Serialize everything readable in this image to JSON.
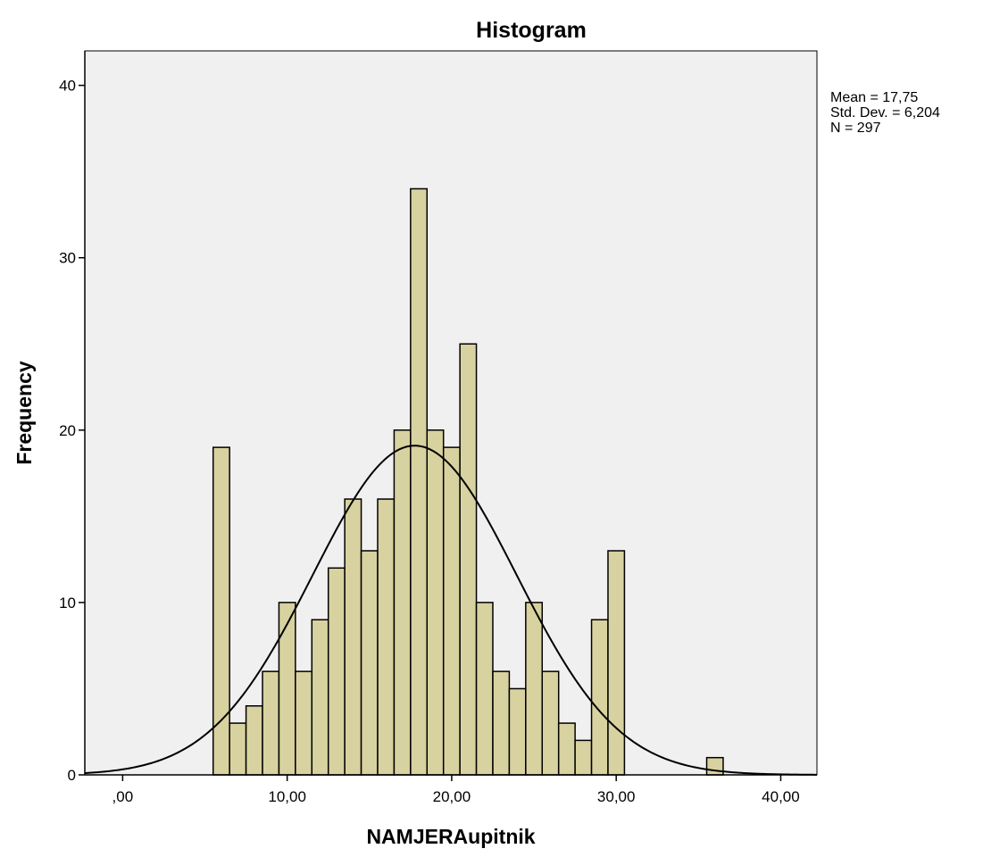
{
  "chart_data": {
    "type": "bar",
    "subtype": "histogram",
    "title": "Histogram",
    "xlabel": "NAMJERAupitnik",
    "ylabel": "Frequency",
    "xlim": [
      -2.3,
      42.2
    ],
    "ylim": [
      0,
      42
    ],
    "x_ticks": [
      {
        "value": 0,
        "label": ",00"
      },
      {
        "value": 10,
        "label": "10,00"
      },
      {
        "value": 20,
        "label": "20,00"
      },
      {
        "value": 30,
        "label": "30,00"
      },
      {
        "value": 40,
        "label": "40,00"
      }
    ],
    "y_ticks": [
      {
        "value": 0,
        "label": "0"
      },
      {
        "value": 10,
        "label": "10"
      },
      {
        "value": 20,
        "label": "20"
      },
      {
        "value": 30,
        "label": "30"
      },
      {
        "value": 40,
        "label": "40"
      }
    ],
    "bins": [
      {
        "x0": 5.5,
        "x1": 6.5,
        "count": 19
      },
      {
        "x0": 6.5,
        "x1": 7.5,
        "count": 3
      },
      {
        "x0": 7.5,
        "x1": 8.5,
        "count": 4
      },
      {
        "x0": 8.5,
        "x1": 9.5,
        "count": 6
      },
      {
        "x0": 9.5,
        "x1": 10.5,
        "count": 10
      },
      {
        "x0": 10.5,
        "x1": 11.5,
        "count": 6
      },
      {
        "x0": 11.5,
        "x1": 12.5,
        "count": 9
      },
      {
        "x0": 12.5,
        "x1": 13.5,
        "count": 12
      },
      {
        "x0": 13.5,
        "x1": 14.5,
        "count": 16
      },
      {
        "x0": 14.5,
        "x1": 15.5,
        "count": 13
      },
      {
        "x0": 15.5,
        "x1": 16.5,
        "count": 16
      },
      {
        "x0": 16.5,
        "x1": 17.5,
        "count": 20
      },
      {
        "x0": 17.5,
        "x1": 18.5,
        "count": 34
      },
      {
        "x0": 18.5,
        "x1": 19.5,
        "count": 20
      },
      {
        "x0": 19.5,
        "x1": 20.5,
        "count": 19
      },
      {
        "x0": 20.5,
        "x1": 21.5,
        "count": 25
      },
      {
        "x0": 21.5,
        "x1": 22.5,
        "count": 10
      },
      {
        "x0": 22.5,
        "x1": 23.5,
        "count": 6
      },
      {
        "x0": 23.5,
        "x1": 24.5,
        "count": 5
      },
      {
        "x0": 24.5,
        "x1": 25.5,
        "count": 10
      },
      {
        "x0": 25.5,
        "x1": 26.5,
        "count": 6
      },
      {
        "x0": 26.5,
        "x1": 27.5,
        "count": 3
      },
      {
        "x0": 27.5,
        "x1": 28.5,
        "count": 2
      },
      {
        "x0": 28.5,
        "x1": 29.5,
        "count": 9
      },
      {
        "x0": 29.5,
        "x1": 30.5,
        "count": 13
      },
      {
        "x0": 35.5,
        "x1": 36.5,
        "count": 1
      }
    ],
    "normal_curve": {
      "mean": 17.75,
      "std_dev": 6.204,
      "n": 297,
      "bin_width": 1
    },
    "stats_labels": [
      "Mean = 17,75",
      "Std. Dev. = 6,204",
      "N = 297"
    ],
    "colors": {
      "bar_fill": "#d8d2a0",
      "bar_stroke": "#000000",
      "plot_background": "#f0f0f0",
      "curve": "#000000"
    },
    "grid": false,
    "legend": "none"
  }
}
